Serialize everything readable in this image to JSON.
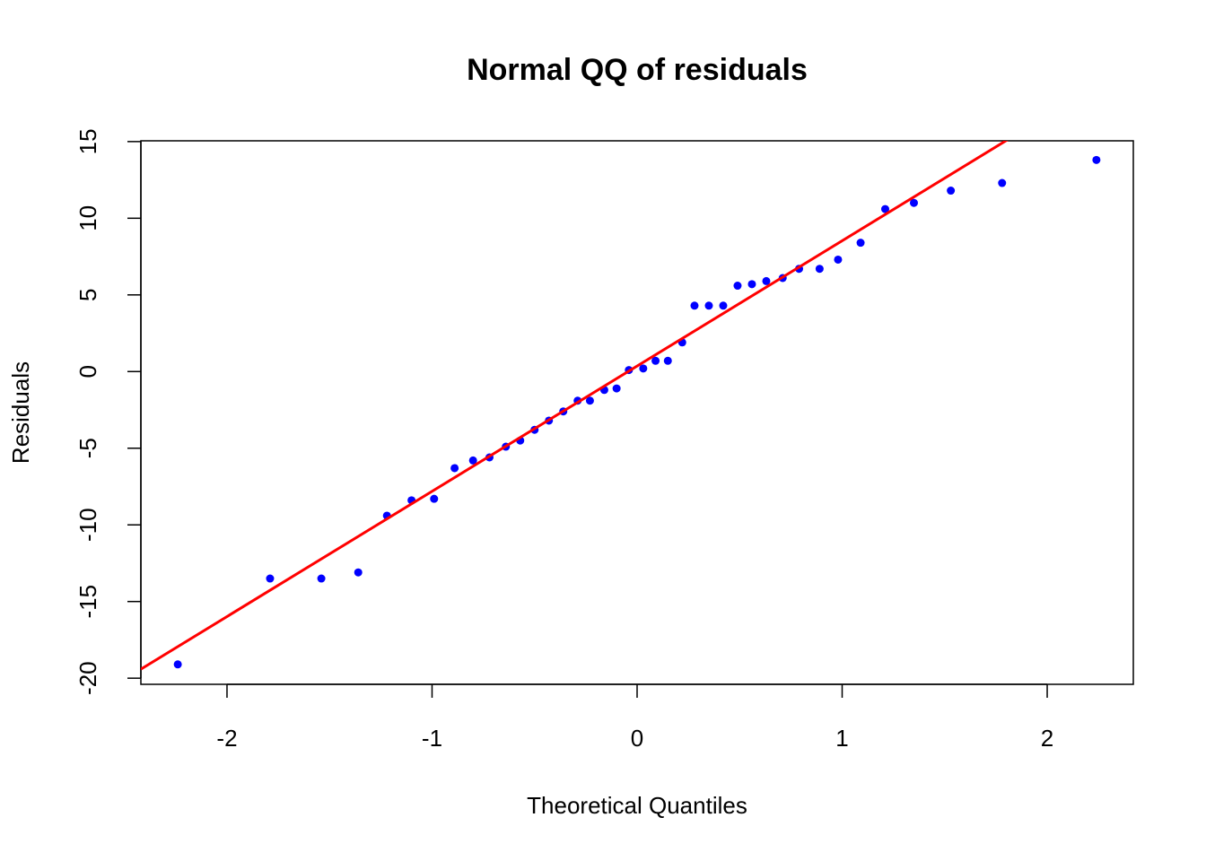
{
  "chart_data": {
    "type": "scatter",
    "title": "Normal QQ of residuals",
    "x_label": "Theoretical Quantiles",
    "y_label": "Residuals",
    "series": [
      {
        "name": "residuals",
        "color": "#0000ff",
        "x": [
          -2.24,
          -1.79,
          -1.54,
          -1.36,
          -1.22,
          -1.1,
          -0.99,
          -0.89,
          -0.8,
          -0.72,
          -0.64,
          -0.57,
          -0.5,
          -0.43,
          -0.36,
          -0.29,
          -0.23,
          -0.16,
          -0.1,
          -0.04,
          0.03,
          0.09,
          0.15,
          0.22,
          0.28,
          0.35,
          0.42,
          0.49,
          0.56,
          0.63,
          0.71,
          0.79,
          0.89,
          0.98,
          1.09,
          1.21,
          1.35,
          1.53,
          1.78,
          2.24
        ],
        "values": [
          -19.1,
          -13.5,
          -13.5,
          -13.1,
          -9.4,
          -8.4,
          -8.3,
          -6.3,
          -5.8,
          -5.6,
          -4.9,
          -4.5,
          -3.8,
          -3.2,
          -2.6,
          -1.9,
          -1.9,
          -1.2,
          -1.1,
          0.1,
          0.2,
          0.7,
          0.7,
          1.9,
          4.3,
          4.3,
          4.3,
          5.6,
          5.7,
          5.9,
          6.1,
          6.7,
          6.7,
          7.3,
          8.4,
          10.6,
          11.0,
          11.8,
          12.3,
          13.8
        ]
      }
    ],
    "reference_line": {
      "intercept": 0.36,
      "slope": 8.17,
      "color": "#ff0000"
    },
    "xlim": [
      -2.42,
      2.42
    ],
    "xticks": [
      -2,
      -1,
      0,
      1,
      2
    ],
    "ylim": [
      -20.4,
      15.05
    ],
    "yticks": [
      -20,
      -15,
      -10,
      -5,
      0,
      5,
      10,
      15
    ]
  }
}
